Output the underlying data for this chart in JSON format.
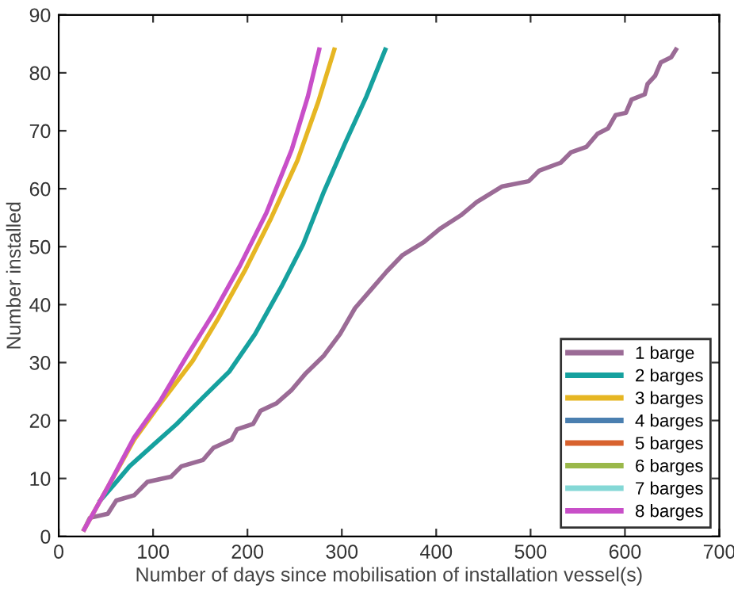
{
  "chart_data": {
    "type": "line",
    "xlabel": "Number of days since mobilisation of installation vessel(s)",
    "ylabel": "Number installed",
    "xlim": [
      0,
      700
    ],
    "ylim": [
      0,
      90
    ],
    "xticks": [
      0,
      100,
      200,
      300,
      400,
      500,
      600,
      700
    ],
    "yticks": [
      0,
      10,
      20,
      30,
      40,
      50,
      60,
      70,
      80,
      90
    ],
    "grid": false,
    "legend": "bottom right",
    "line_style": "solid",
    "marker": "none",
    "series": [
      {
        "name": "1 barge",
        "color": "#9b6b96",
        "x": [
          27,
          33,
          52,
          61,
          80,
          94,
          119,
          130,
          153,
          164,
          183,
          189,
          206,
          214,
          231,
          247,
          261,
          281,
          298,
          314,
          331,
          348,
          364,
          387,
          404,
          426,
          443,
          470,
          498,
          509,
          532,
          543,
          559,
          571,
          582,
          590,
          601,
          607,
          621,
          624,
          632,
          638,
          649,
          654
        ],
        "values": [
          1.2,
          3.2,
          3.9,
          6.2,
          7.1,
          9.4,
          10.3,
          12.1,
          13.2,
          15.3,
          16.7,
          18.5,
          19.4,
          21.7,
          23,
          25.3,
          28,
          31.2,
          34.9,
          39.4,
          42.6,
          45.8,
          48.5,
          50.8,
          53.1,
          55.4,
          57.7,
          60.4,
          61.3,
          63.1,
          64.5,
          66.3,
          67.2,
          69.5,
          70.4,
          72.7,
          73.1,
          75.4,
          76.3,
          78.1,
          79.5,
          81.8,
          82.7,
          84
        ]
      },
      {
        "name": "2 barges",
        "color": "#16a19f",
        "x": [
          44,
          61,
          75,
          103,
          125,
          153,
          181,
          208,
          236,
          259,
          281,
          303,
          326,
          346
        ],
        "values": [
          6.2,
          9.4,
          12.1,
          16.2,
          19.4,
          24,
          28.5,
          34.9,
          43.1,
          50.4,
          59.5,
          67.7,
          75.9,
          84
        ]
      },
      {
        "name": "3 barges",
        "color": "#e6b623",
        "x": [
          27,
          52,
          80,
          108,
          142,
          169,
          197,
          225,
          253,
          275,
          292
        ],
        "values": [
          1.2,
          8.5,
          16.7,
          23,
          30.3,
          37.6,
          45.8,
          54.9,
          64.9,
          75,
          84
        ]
      },
      {
        "name": "4 barges",
        "color": "#4a7fb0"
      },
      {
        "name": "5 barges",
        "color": "#d8622e"
      },
      {
        "name": "6 barges",
        "color": "#9ab84a"
      },
      {
        "name": "7 barges",
        "color": "#84d8d6"
      },
      {
        "name": "8 barges",
        "color": "#c84fc8",
        "x": [
          27,
          52,
          80,
          108,
          136,
          164,
          192,
          220,
          247,
          264,
          276
        ],
        "values": [
          1.2,
          8.5,
          17.1,
          23.5,
          31.2,
          38.5,
          46.7,
          55.8,
          66.8,
          75.9,
          84
        ]
      }
    ]
  }
}
